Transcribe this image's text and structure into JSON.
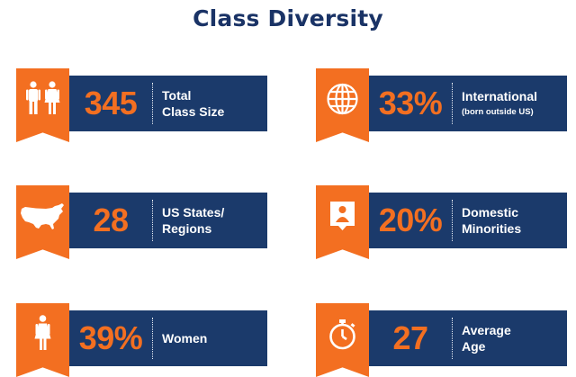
{
  "title": "Class Diversity",
  "colors": {
    "navy": "#1b3a6b",
    "orange": "#f36f21",
    "title": "#1a3366"
  },
  "stats": {
    "total": {
      "value": "345",
      "line1": "Total",
      "line2": "Class Size",
      "icon": "people-icon"
    },
    "international": {
      "value": "33%",
      "line1": "International",
      "sub": "(born outside US)",
      "icon": "globe-icon"
    },
    "states": {
      "value": "28",
      "line1": "US States/",
      "line2": "Regions",
      "icon": "us-map-icon"
    },
    "minorities": {
      "value": "20%",
      "line1": "Domestic",
      "line2": "Minorities",
      "icon": "person-portrait-icon"
    },
    "women": {
      "value": "39%",
      "line1": "Women",
      "icon": "woman-icon"
    },
    "age": {
      "value": "27",
      "line1": "Average",
      "line2": "Age",
      "icon": "stopwatch-icon"
    }
  }
}
